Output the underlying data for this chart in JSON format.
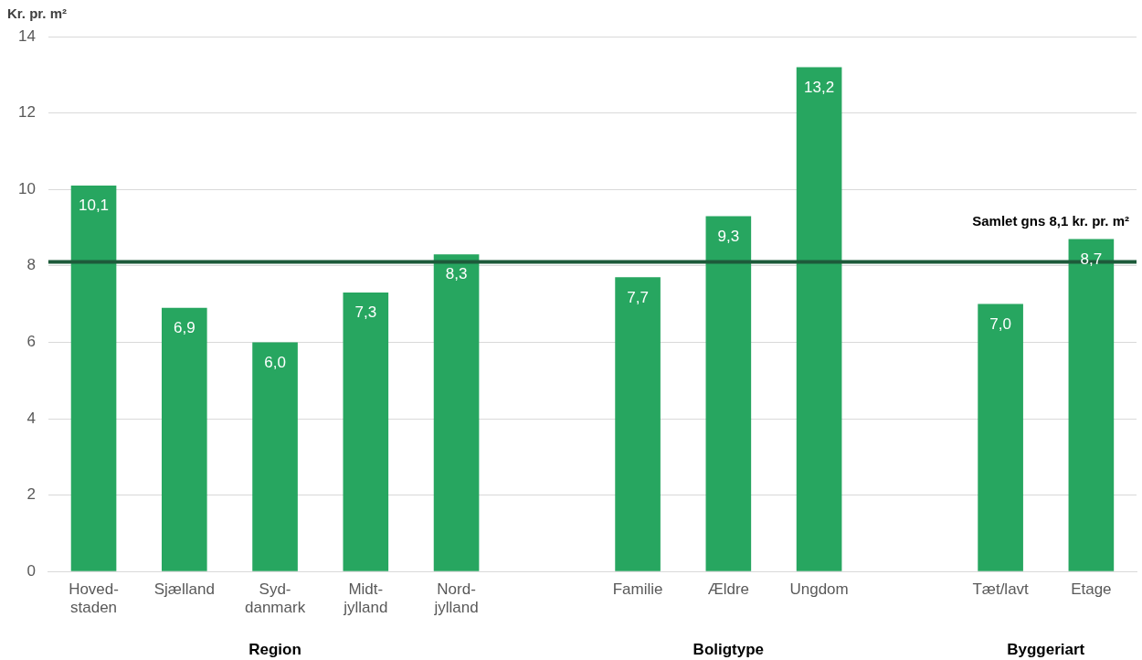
{
  "chart_data": {
    "type": "bar",
    "ylabel": "Kr. pr. m²",
    "categories": [
      "Hoved-\nstaden",
      "Sjælland",
      "Syd-\ndanmark",
      "Midt-\njylland",
      "Nord-\njylland",
      null,
      "Familie",
      "Ældre",
      "Ungdom",
      null,
      "Tæt/lavt",
      "Etage"
    ],
    "values": [
      10.1,
      6.9,
      6.0,
      7.3,
      8.3,
      null,
      7.7,
      9.3,
      13.2,
      null,
      7.0,
      8.7
    ],
    "value_labels": [
      "10,1",
      "6,9",
      "6,0",
      "7,3",
      "8,3",
      null,
      "7,7",
      "9,3",
      "13,2",
      null,
      "7,0",
      "8,7"
    ],
    "color": "#27a660",
    "ylim": [
      0,
      14
    ],
    "yticks": [
      0,
      2,
      4,
      6,
      8,
      10,
      12,
      14
    ],
    "grid": "y",
    "legend": false,
    "ref_lines": [
      {
        "axis": "y",
        "value": 8.1,
        "label": "Samlet gns 8,1 kr. pr. m²",
        "color": "#1d5a3a"
      }
    ],
    "annotations": [
      "Region",
      "Boligtype",
      "Byggeriart"
    ]
  }
}
